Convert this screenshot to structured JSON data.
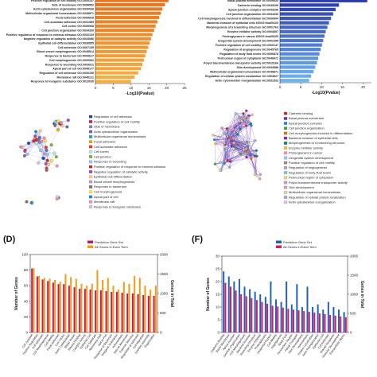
{
  "panels": {
    "A": {
      "chart_data": {
        "type": "bar",
        "orientation": "horizontal",
        "categories": [
          "Positive regulation of cell motility GO:2000147",
          "Side of membrane GO:0098552",
          "Actin cytoskeleton organization GO:0030036",
          "Multicellular organismal homeostasis GO:0048871",
          "Focal adhesion GO:0005925",
          "Cell-substrate adhesion GO:0031589",
          "Cell cortex GO:0005938",
          "Cell junction organization GO:0034330",
          "Positive regulation of response to external stimulus GO:0032103",
          "Negative regulation of catalytic activity GO:0043086",
          "Epithelial cell differentiation GO:0030855",
          "Cell adhesion GO:0007155",
          "Blood vessel morphogenesis GO:0048514",
          "Response to bacterium GO:0009617",
          "Cell morphogenesis GO:0000902",
          "Response to wounding GO:0009611",
          "Apical part of cell GO:0045177",
          "Regulation of cell adhesion GO:0030155",
          "Membrane raft GO:0045121",
          "Response to inorganic substance GO:0010035"
        ],
        "values": [
          20.5,
          19.5,
          18.8,
          18.4,
          17.9,
          17.4,
          16.9,
          16.5,
          16.0,
          15.6,
          15.2,
          14.8,
          14.4,
          14.0,
          13.6,
          13.2,
          12.8,
          12.0,
          11.0,
          10.0
        ],
        "xticks": [
          "0",
          "5",
          "10",
          "15",
          "20",
          "25"
        ],
        "xlim": [
          0,
          25
        ],
        "xlabel": "-Log10(Pvalue)",
        "colors": [
          "#e8731e",
          "#f5b041"
        ]
      }
    },
    "B": {
      "chart_data": {
        "type": "bar",
        "orientation": "horizontal",
        "categories": [
          "Basal plasma membrane GO:0009925",
          "Cadherin binding GO:0045296",
          "Apical junction complex GO:0043296",
          "Cell junction organization GO:0034330",
          "Cell morphogenesis involved in differentiation GO:0000904",
          "Bacterial invasion of epithelial cells KEGG:hsa05100",
          "Morphogenesis of a branching structure GO:0001763",
          "Enzyme inhibitor activity GO:0004857",
          "Proteoglycans in cancer KEGG:hsa05205",
          "Urogenital system development GO:0001655",
          "Positive regulation of cell motility GO:2000147",
          "Regulation of angiogenesis GO:0045765",
          "Regulation of body fluid levels GO:0050878",
          "Perinuclear region of cytoplasm GO:0048471",
          "Polyol transmembrane transporter activity GO:0015166",
          "Skin development GO:0043588",
          "Multicellular organismal homeostasis GO:0048871",
          "Regulation of cellular protein localization GO:1903827",
          "Actin cytoskeleton reorganization GO:0031532"
        ],
        "values": [
          21.0,
          14.2,
          13.4,
          12.8,
          12.3,
          11.8,
          11.4,
          11.0,
          10.7,
          10.4,
          10.1,
          9.8,
          9.5,
          9.2,
          8.9,
          8.5,
          8.1,
          7.5,
          7.0
        ],
        "xticks": [
          "0",
          "5",
          "10",
          "15",
          "20"
        ],
        "xlim": [
          0,
          22
        ],
        "xlabel": "-Log10(Pvalue)",
        "colors": [
          "#2e3ca8",
          "#6fb4f0"
        ]
      }
    },
    "C": {
      "legend": [
        {
          "label": "Regulation of cell adhesion",
          "color": "#2e3a9f"
        },
        {
          "label": "Positive regulation of cell motility",
          "color": "#d81b60"
        },
        {
          "label": "Side of membrane",
          "color": "#8e7cc3"
        },
        {
          "label": "Actin cytoskeleton organization",
          "color": "#5c6bc0"
        },
        {
          "label": "Multicellular organismal homeostasis",
          "color": "#26a69a"
        },
        {
          "label": "Focal adhesion",
          "color": "#f4a300"
        },
        {
          "label": "Cell-substrate adhesion",
          "color": "#e53935"
        },
        {
          "label": "Cell cortex",
          "color": "#b2ebf2"
        },
        {
          "label": "Cell junction",
          "color": "#7cb342"
        },
        {
          "label": "Response to wounding",
          "color": "#90caf9"
        },
        {
          "label": "Positive regulation of response to external stimulus",
          "color": "#c62828"
        },
        {
          "label": "Negative regulation of catalytic activity",
          "color": "#ab47bc"
        },
        {
          "label": "Epithelial cell differentiation",
          "color": "#ffcc80"
        },
        {
          "label": "Blood vessel morphogenesis",
          "color": "#ce93d8"
        },
        {
          "label": "Response to bacterium",
          "color": "#8d6e63"
        },
        {
          "label": "Cell morphogenesis",
          "color": "#ffeb3b"
        },
        {
          "label": "Apical part of cell",
          "color": "#1e88e5"
        },
        {
          "label": "Membrane raft",
          "color": "#f48fb1"
        },
        {
          "label": "Response to inorganic substance",
          "color": "#e1bee7"
        }
      ]
    },
    "E": {
      "legend": [
        {
          "label": "Cadherin binding",
          "color": "#c62828"
        },
        {
          "label": "Basal plasma membrane",
          "color": "#5e35b1"
        },
        {
          "label": "Apical junction complex",
          "color": "#1e88e5"
        },
        {
          "label": "Cell junction organization",
          "color": "#43a047"
        },
        {
          "label": "Cell morphogenesis involved in differentiation",
          "color": "#ef6c00"
        },
        {
          "label": "Bacterial invasion of epithelial cells",
          "color": "#8e24aa"
        },
        {
          "label": "Morphogenesis of a branching structure",
          "color": "#00897b"
        },
        {
          "label": "Enzyme inhibitor activity",
          "color": "#fbc02d"
        },
        {
          "label": "Proteoglycans in cancer",
          "color": "#f48fb1"
        },
        {
          "label": "Urogenital system development",
          "color": "#90caf9"
        },
        {
          "label": "Positive regulation of cell motility",
          "color": "#a1887f"
        },
        {
          "label": "Regulation of angiogenesis",
          "color": "#b39ddb"
        },
        {
          "label": "Regulation of body fluid levels",
          "color": "#80cbc4"
        },
        {
          "label": "Perinuclear region of cytoplasm",
          "color": "#ffcc80"
        },
        {
          "label": "Polyol transmembrane transporter activity",
          "color": "#ce93d8"
        },
        {
          "label": "Skin development",
          "color": "#ef9a9a"
        },
        {
          "label": "Multicellular organismal homeostasis",
          "color": "#c5e1a5"
        },
        {
          "label": "Regulation of cellular protein localization",
          "color": "#9fa8da"
        },
        {
          "label": "Actin cytoskeleton reorganization",
          "color": "#e1bee7"
        }
      ]
    },
    "D": {
      "label": "(D)",
      "chart_data": {
        "type": "bar",
        "legend": [
          "Prediction Gene Set",
          "All Genes in Each Term"
        ],
        "colors": [
          "#c2185b",
          "#f39c12"
        ],
        "ylabel": "Number of Genes",
        "y2label": "Genes in Total",
        "ylim": [
          0,
          100
        ],
        "y2lim": [
          0,
          2000
        ],
        "yticks": [
          "0",
          "20",
          "40",
          "60",
          "80",
          "100"
        ],
        "y2ticks": [
          "0",
          "500",
          "1000",
          "1500",
          "2000"
        ],
        "categories": [
          "Cell Junction",
          "Positive Regulation",
          "Cell Adhesion",
          "Cell Morphogenesis",
          "Cell Motility",
          "Focal Adhesion",
          "Cell Cortex",
          "Actin Cytoskeleton",
          "Blood Vessel",
          "Wound Healing",
          "Catalytic Activity",
          "Epithelial Cell",
          "Cell Substrate",
          "Membrane Raft",
          "Apical Part",
          "Response to Bacterium",
          "Inorganic Substance",
          "Homeostasis",
          "Side of Membrane",
          "External Stimulus",
          "Regulation of Adhesion",
          "Cell Migration",
          "Junction Assembly",
          "Organization"
        ],
        "series": [
          {
            "name": "Prediction Gene Set",
            "values": [
              82,
              72,
              68,
              66,
              64,
              62,
              62,
              60,
              58,
              56,
              56,
              55,
              54,
              54,
              53,
              52,
              52,
              51,
              50,
              50,
              49,
              48,
              47,
              47
            ]
          },
          {
            "name": "All Genes in Each Term",
            "values": [
              1650,
              1450,
              1400,
              1380,
              1350,
              1300,
              1500,
              1420,
              1380,
              1250,
              1200,
              1250,
              1600,
              1350,
              1400,
              1200,
              1100,
              1300,
              1250,
              1450,
              1400,
              1200,
              1100,
              1200
            ]
          }
        ]
      }
    },
    "F": {
      "label": "(F)",
      "chart_data": {
        "type": "bar",
        "legend": [
          "Prediction Gene Set",
          "All Genes in Each Term"
        ],
        "colors": [
          "#1f5fbf",
          "#d81b60"
        ],
        "ylabel": "Number of Genes",
        "y2label": "Genes in Total",
        "ylim": [
          0,
          30
        ],
        "y2lim": [
          0,
          2000
        ],
        "yticks": [
          "0",
          "5",
          "10",
          "15",
          "20",
          "25",
          "30"
        ],
        "y2ticks": [
          "0",
          "500",
          "1000",
          "1500",
          "2000"
        ],
        "categories": [
          "Cadherin Binding",
          "Basal Membrane",
          "Apical Junction",
          "Junction Organization",
          "Cell Morphogenesis",
          "Bacterial Invasion",
          "Branching Structure",
          "Enzyme Inhibitor",
          "Proteoglycans",
          "Urogenital System",
          "Cell Motility",
          "Angiogenesis",
          "Body Fluid",
          "Perinuclear Region",
          "Polyol Transport",
          "Skin Development",
          "Homeostasis",
          "Protein Localization",
          "Actin Reorganization",
          "Epithelial Cell",
          "Cell Adhesion",
          "Wound Response",
          "Vascular Development",
          "Extracellular Matrix"
        ],
        "series": [
          {
            "name": "Prediction Gene Set",
            "values": [
              24,
              22,
              20,
              21,
              18,
              17,
              16,
              15,
              14,
              20,
              13,
              12,
              20,
              11,
              19,
              10,
              18,
              10,
              11,
              9,
              12,
              10,
              9,
              8
            ]
          },
          {
            "name": "All Genes in Each Term",
            "values": [
              1300,
              1200,
              1100,
              1000,
              950,
              900,
              850,
              800,
              750,
              700,
              680,
              650,
              620,
              600,
              580,
              560,
              540,
              520,
              500,
              480,
              460,
              440,
              420,
              400
            ]
          }
        ]
      }
    }
  }
}
